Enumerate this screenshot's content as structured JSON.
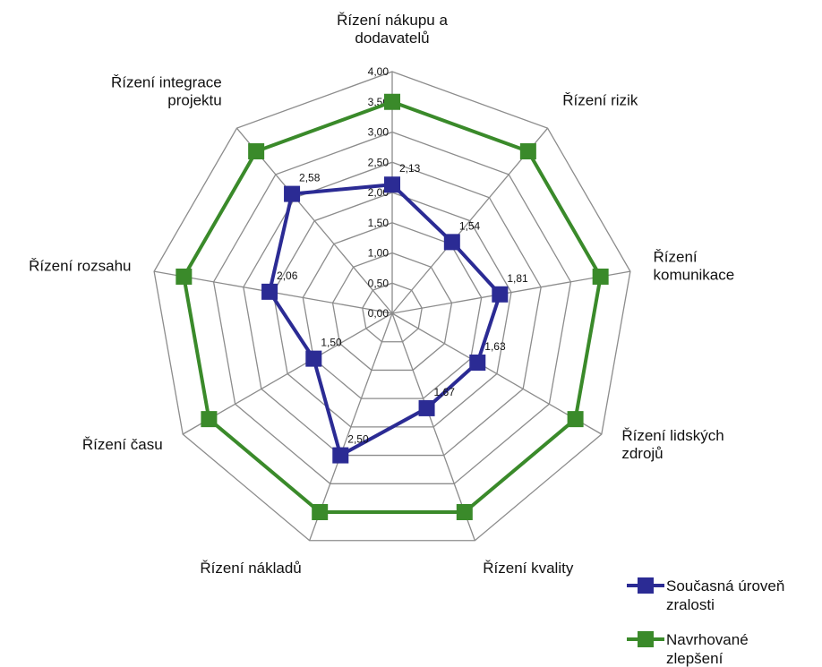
{
  "chart_data": {
    "type": "radar",
    "title": "",
    "axis": {
      "min": 0,
      "max": 4,
      "step": 0.5,
      "tick_labels": [
        "0,00",
        "0,50",
        "1,00",
        "1,50",
        "2,00",
        "2,50",
        "3,00",
        "3,50",
        "4,00"
      ]
    },
    "categories": [
      [
        "Řízení nákupu a",
        "dodavatelů"
      ],
      [
        "Řízení rizik"
      ],
      [
        "Řízení",
        "komunikace"
      ],
      [
        "Řízení lidských",
        "zdrojů"
      ],
      [
        "Řízení kvality"
      ],
      [
        "Řízení nákladů"
      ],
      [
        "Řízení času"
      ],
      [
        "Řízení rozsahu"
      ],
      [
        "Řízení integrace",
        "projektu"
      ]
    ],
    "series": [
      {
        "name": [
          "Současná úroveň",
          "zralosti"
        ],
        "color": "#2b2b94",
        "values": [
          2.13,
          1.54,
          1.81,
          1.63,
          1.67,
          2.5,
          1.5,
          2.06,
          2.58
        ],
        "data_labels": [
          "2,13",
          "1,54",
          "1,81",
          "1,63",
          "1,67",
          "2,50",
          "1,50",
          "2,06",
          "2,58"
        ]
      },
      {
        "name": [
          "Navrhované",
          "zlepšení"
        ],
        "color": "#3a8a2a",
        "values": [
          3.5,
          3.5,
          3.5,
          3.5,
          3.5,
          3.5,
          3.5,
          3.5,
          3.5
        ],
        "data_labels": []
      }
    ],
    "grid": true,
    "legend": "bottom-right"
  }
}
